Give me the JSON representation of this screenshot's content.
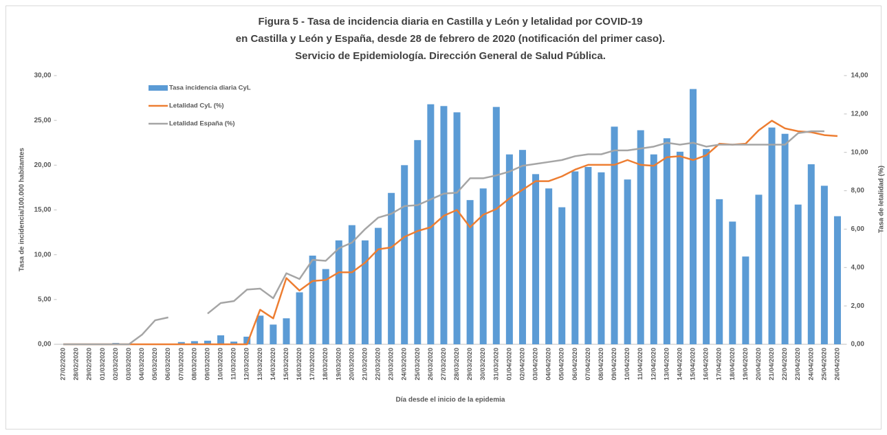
{
  "chart_data": {
    "type": "bar",
    "title_lines": [
      "Figura 5 - Tasa de incidencia diaria en Castilla y León y letalidad por COVID-19",
      "en Castilla y León y España, desde 28 de febrero de 2020 (notificación del primer caso).",
      "Servicio de Epidemiología. Dirección General de Salud Pública."
    ],
    "x_label": "Día desde el inicio de la epidemia",
    "y_label": "Tasa de incidencia/100.000 habitantes",
    "y2_label": "Tasa de letalidad (%)",
    "categories": [
      "27/02/2020",
      "28/02/2020",
      "29/02/2020",
      "01/03/2020",
      "02/03/2020",
      "03/03/2020",
      "04/03/2020",
      "05/03/2020",
      "06/03/2020",
      "07/03/2020",
      "08/03/2020",
      "09/03/2020",
      "10/03/2020",
      "11/03/2020",
      "12/03/2020",
      "13/03/2020",
      "14/03/2020",
      "15/03/2020",
      "16/03/2020",
      "17/03/2020",
      "18/03/2020",
      "19/03/2020",
      "20/03/2020",
      "21/03/2020",
      "22/03/2020",
      "23/03/2020",
      "24/03/2020",
      "25/03/2020",
      "26/03/2020",
      "27/03/2020",
      "28/03/2020",
      "29/03/2020",
      "30/03/2020",
      "31/03/2020",
      "01/04/2020",
      "02/04/2020",
      "03/04/2020",
      "04/04/2020",
      "05/04/2020",
      "06/04/2020",
      "07/04/2020",
      "08/04/2020",
      "09/04/2020",
      "10/04/2020",
      "11/04/2020",
      "12/04/2020",
      "13/04/2020",
      "14/04/2020",
      "15/04/2020",
      "16/04/2020",
      "17/04/2020",
      "18/04/2020",
      "19/04/2020",
      "20/04/2020",
      "21/04/2020",
      "22/04/2020",
      "23/04/2020",
      "24/04/2020",
      "25/04/2020",
      "26/04/2020"
    ],
    "series": [
      {
        "name": "Tasa incidencia diaria CyL",
        "color": "#5b9bd5",
        "type": "bar",
        "values": [
          0,
          0,
          0,
          0,
          0.15,
          0,
          0.05,
          0,
          0,
          0.25,
          0.35,
          0.4,
          1.0,
          0.3,
          0.85,
          3.2,
          2.2,
          2.9,
          5.8,
          9.9,
          8.4,
          11.6,
          13.3,
          11.6,
          13.0,
          16.9,
          20.0,
          22.8,
          26.8,
          26.6,
          25.9,
          16.1,
          17.4,
          26.5,
          21.2,
          21.7,
          19.0,
          17.4,
          15.3,
          19.3,
          19.8,
          19.2,
          24.3,
          18.4,
          23.9,
          21.2,
          23.0,
          21.5,
          28.5,
          21.8,
          16.2,
          13.7,
          9.8,
          16.7,
          24.2,
          23.5,
          15.6,
          20.1,
          17.7,
          14.3
        ]
      },
      {
        "name": "Letalidad CyL (%)",
        "color": "#ed7d31",
        "type": "line",
        "axis": "y2",
        "values": [
          0,
          0,
          0,
          0,
          0,
          0,
          0,
          0,
          0,
          0,
          0,
          0,
          0,
          0,
          0,
          1.8,
          1.35,
          3.45,
          2.8,
          3.3,
          3.35,
          3.75,
          3.75,
          4.25,
          4.95,
          5.05,
          5.6,
          5.9,
          6.1,
          6.7,
          7.0,
          6.1,
          6.75,
          7.05,
          7.6,
          8.05,
          8.5,
          8.5,
          8.75,
          9.1,
          9.35,
          9.35,
          9.35,
          9.6,
          9.35,
          9.3,
          9.75,
          9.8,
          9.6,
          9.85,
          10.45,
          10.4,
          10.45,
          11.15,
          11.65,
          11.25,
          11.1,
          11.05,
          10.9,
          10.85
        ]
      },
      {
        "name": "Letalidad España (%)",
        "color": "#a5a5a5",
        "type": "line",
        "axis": "y2",
        "values": [
          0,
          0,
          0,
          0,
          0,
          0,
          0.5,
          1.25,
          1.4,
          null,
          null,
          1.6,
          2.15,
          2.25,
          2.85,
          2.9,
          2.4,
          3.7,
          3.4,
          4.4,
          4.35,
          5.0,
          5.3,
          6.0,
          6.6,
          6.8,
          7.2,
          7.25,
          7.55,
          7.85,
          7.9,
          8.65,
          8.65,
          8.8,
          9.0,
          9.3,
          9.4,
          9.5,
          9.6,
          9.8,
          9.9,
          9.9,
          10.1,
          10.1,
          10.2,
          10.3,
          10.5,
          10.4,
          10.5,
          10.3,
          10.4,
          10.4,
          10.4,
          10.4,
          10.4,
          10.4,
          11.0,
          11.1,
          11.1,
          null
        ]
      }
    ],
    "ylim": [
      0,
      30
    ],
    "yticks": [
      {
        "value": 0,
        "label": "0,00"
      },
      {
        "value": 5,
        "label": "5,00"
      },
      {
        "value": 10,
        "label": "10,00"
      },
      {
        "value": 15,
        "label": "15,00"
      },
      {
        "value": 20,
        "label": "20,00"
      },
      {
        "value": 25,
        "label": "25,00"
      },
      {
        "value": 30,
        "label": "30,00"
      }
    ],
    "y2lim": [
      0,
      14
    ],
    "y2ticks": [
      {
        "value": 0,
        "label": "0,00"
      },
      {
        "value": 2,
        "label": "2,00"
      },
      {
        "value": 4,
        "label": "4,00"
      },
      {
        "value": 6,
        "label": "6,00"
      },
      {
        "value": 8,
        "label": "8,00"
      },
      {
        "value": 10,
        "label": "10,00"
      },
      {
        "value": 12,
        "label": "12,00"
      },
      {
        "value": 14,
        "label": "14,00"
      }
    ],
    "legend": "top-left"
  }
}
